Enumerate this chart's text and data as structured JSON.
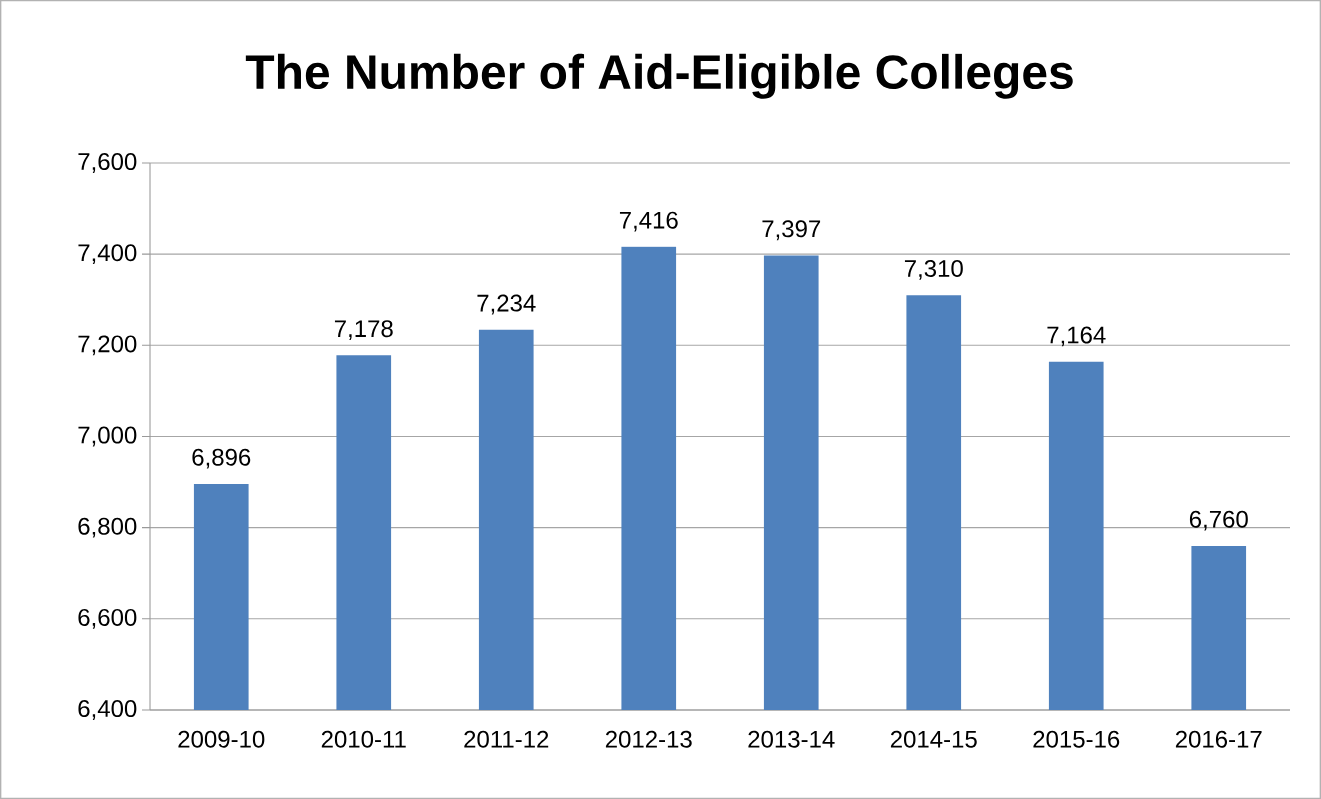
{
  "chart_data": {
    "type": "bar",
    "title": "The Number of Aid-Eligible Colleges",
    "categories": [
      "2009-10",
      "2010-11",
      "2011-12",
      "2012-13",
      "2013-14",
      "2014-15",
      "2015-16",
      "2016-17"
    ],
    "values": [
      6896,
      7178,
      7234,
      7416,
      7397,
      7310,
      7164,
      6760
    ],
    "value_labels": [
      "6,896",
      "7,178",
      "7,234",
      "7,416",
      "7,397",
      "7,310",
      "7,164",
      "6,760"
    ],
    "color": "#4f81bd",
    "ylim": [
      6400,
      7600
    ],
    "yticks": [
      {
        "value": 6400,
        "label": "6,400"
      },
      {
        "value": 6600,
        "label": "6,600"
      },
      {
        "value": 6800,
        "label": "6,800"
      },
      {
        "value": 7000,
        "label": "7,000"
      },
      {
        "value": 7200,
        "label": "7,200"
      },
      {
        "value": 7400,
        "label": "7,400"
      },
      {
        "value": 7600,
        "label": "7,600"
      }
    ],
    "grid": "y"
  }
}
